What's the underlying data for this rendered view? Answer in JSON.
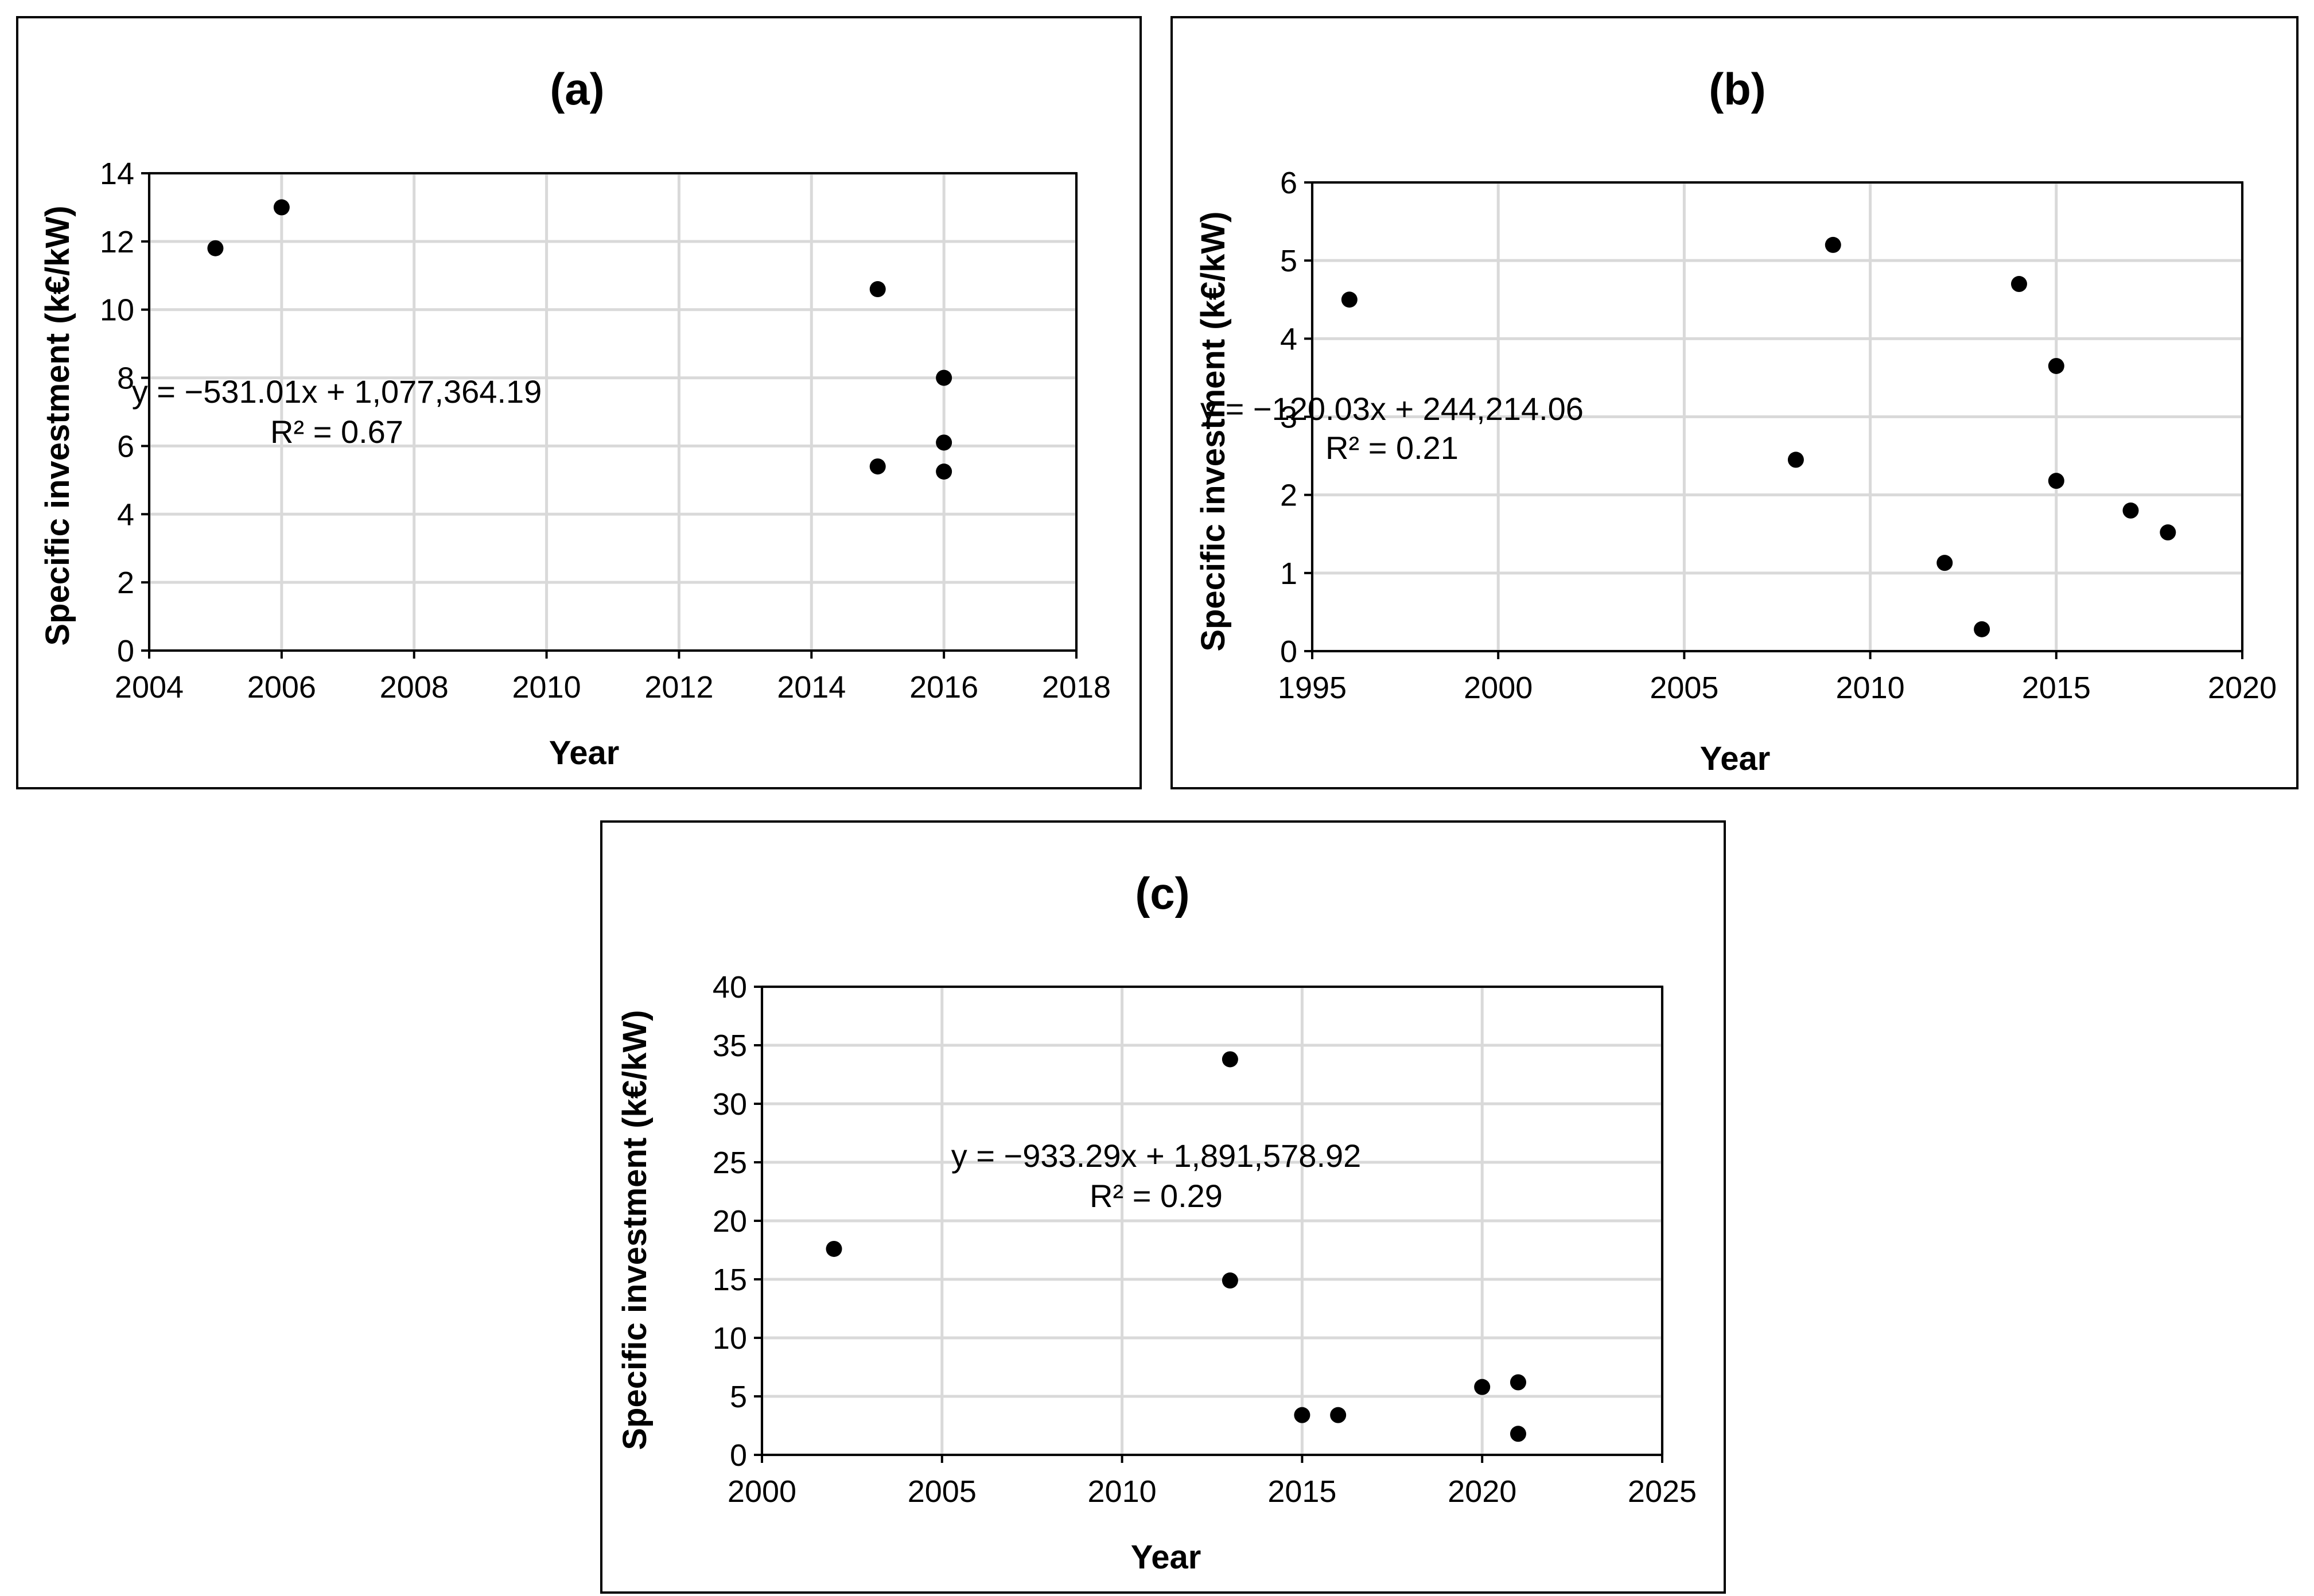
{
  "chart_data": [
    {
      "id": "a",
      "type": "scatter",
      "title": "(a)",
      "xlabel": "Year",
      "ylabel": "Specific investment (k€/kW)",
      "xlim": [
        2004,
        2018
      ],
      "ylim": [
        0,
        14
      ],
      "xticks": [
        2004,
        2006,
        2008,
        2010,
        2012,
        2014,
        2016,
        2018
      ],
      "yticks": [
        0,
        2,
        4,
        6,
        8,
        10,
        12,
        14
      ],
      "grid": true,
      "points": [
        {
          "x": 2005,
          "y": 11.8
        },
        {
          "x": 2006,
          "y": 13.0
        },
        {
          "x": 2015,
          "y": 10.6
        },
        {
          "x": 2015,
          "y": 5.4
        },
        {
          "x": 2016,
          "y": 8.0
        },
        {
          "x": 2016,
          "y": 6.1
        },
        {
          "x": 2016,
          "y": 5.25
        }
      ],
      "trendline": {
        "slope": -531.01,
        "intercept": 1077364.19,
        "x_range": [
          2005,
          2016
        ]
      },
      "equation": "y = −531.01x + 1,077,364.19",
      "r_squared": "R² = 0.67"
    },
    {
      "id": "b",
      "type": "scatter",
      "title": "(b)",
      "xlabel": "Year",
      "ylabel": "Specific investment (k€/kW)",
      "xlim": [
        1995,
        2020
      ],
      "ylim": [
        0,
        6
      ],
      "xticks": [
        1995,
        2000,
        2005,
        2010,
        2015,
        2020
      ],
      "yticks": [
        0,
        1,
        2,
        3,
        4,
        5,
        6
      ],
      "grid": true,
      "points": [
        {
          "x": 1996,
          "y": 4.5
        },
        {
          "x": 2008,
          "y": 2.45
        },
        {
          "x": 2009,
          "y": 5.2
        },
        {
          "x": 2012,
          "y": 1.13
        },
        {
          "x": 2013,
          "y": 0.28
        },
        {
          "x": 2014,
          "y": 4.7
        },
        {
          "x": 2015,
          "y": 3.65
        },
        {
          "x": 2015,
          "y": 2.18
        },
        {
          "x": 2017,
          "y": 1.8
        },
        {
          "x": 2018,
          "y": 1.52
        }
      ],
      "trendline": {
        "slope": -120.03,
        "intercept": 244214.06,
        "x_range": [
          1996,
          2018
        ]
      },
      "equation": "y = −120.03x + 244,214.06",
      "r_squared": "R² = 0.21"
    },
    {
      "id": "c",
      "type": "scatter",
      "title": "(c)",
      "xlabel": "Year",
      "ylabel": "Specific investment (k€/kW)",
      "xlim": [
        2000,
        2025
      ],
      "ylim": [
        0,
        40
      ],
      "xticks": [
        2000,
        2005,
        2010,
        2015,
        2020,
        2025
      ],
      "yticks": [
        0,
        5,
        10,
        15,
        20,
        25,
        30,
        35,
        40
      ],
      "grid": true,
      "points": [
        {
          "x": 2002,
          "y": 17.6
        },
        {
          "x": 2013,
          "y": 33.8
        },
        {
          "x": 2013,
          "y": 14.9
        },
        {
          "x": 2015,
          "y": 3.4
        },
        {
          "x": 2016,
          "y": 3.4
        },
        {
          "x": 2020,
          "y": 5.8
        },
        {
          "x": 2021,
          "y": 6.2
        },
        {
          "x": 2021,
          "y": 1.8
        }
      ],
      "trendline": {
        "slope": -933.29,
        "intercept": 1891578.92,
        "x_range": [
          2002,
          2021
        ]
      },
      "equation": "y = −933.29x + 1,891,578.92",
      "r_squared": "R² = 0.29"
    }
  ]
}
